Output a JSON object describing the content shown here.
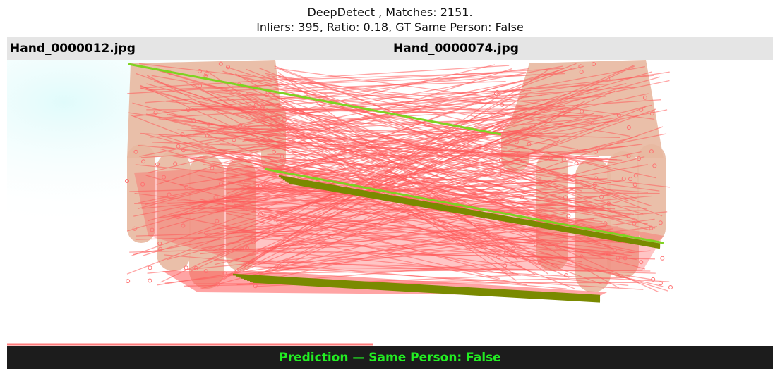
{
  "figure": {
    "title_line1": "DeepDetect , Matches: 2151.",
    "title_line2": "Inliers: 395, Ratio: 0.18, GT Same Person: False"
  },
  "images": {
    "left_filename": "Hand_0000012.jpg",
    "right_filename": "Hand_0000074.jpg"
  },
  "prediction": {
    "text": "Prediction — Same Person: False",
    "color": "#22ee22"
  },
  "colors": {
    "outlier_match": "#ff5a5a",
    "inlier_match": "#7a8a00",
    "inlier_match_light": "#7ed321",
    "skin": "#e8b8a0"
  }
}
